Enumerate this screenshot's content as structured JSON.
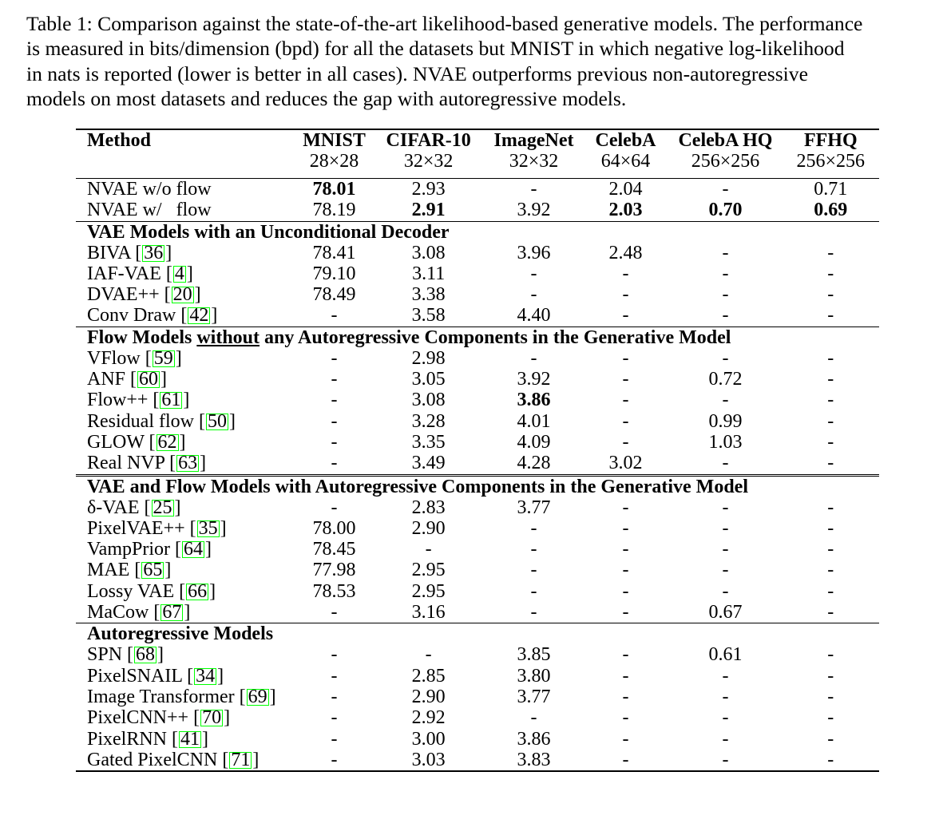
{
  "caption": {
    "lines": [
      "Table 1: Comparison against the state-of-the-art likelihood-based generative models. The performance",
      "is measured in bits/dimension (bpd) for all the datasets but MNIST in which negative log-likelihood",
      "in nats is reported (lower is better in all cases). NVAE outperforms previous non-autoregressive",
      "models on most datasets and reduces the gap with autoregressive models."
    ]
  },
  "header": {
    "method": "Method",
    "datasets": [
      "MNIST",
      "CIFAR-10",
      "ImageNet",
      "CelebA",
      "CelebA HQ",
      "FFHQ"
    ],
    "resolutions": [
      "28×28",
      "32×32",
      "32×32",
      "64×64",
      "256×256",
      "256×256"
    ]
  },
  "nvae": {
    "rows": [
      {
        "name": "NVAE w/o flow",
        "values": [
          "78.01",
          "2.93",
          "-",
          "2.04",
          "-",
          "0.71"
        ]
      },
      {
        "name": "NVAE w/   flow",
        "values": [
          "78.19",
          "2.91",
          "3.92",
          "2.03",
          "0.70",
          "0.69"
        ]
      }
    ]
  },
  "sections": [
    {
      "title": "VAE Models with an Unconditional Decoder",
      "rows": [
        {
          "name": "BIVA",
          "ref": "36",
          "values": [
            "78.41",
            "3.08",
            "3.96",
            "2.48",
            "-",
            "-"
          ]
        },
        {
          "name": "IAF-VAE",
          "ref": "4",
          "values": [
            "79.10",
            "3.11",
            "-",
            "-",
            "-",
            "-"
          ]
        },
        {
          "name": "DVAE++",
          "ref": "20",
          "values": [
            "78.49",
            "3.38",
            "-",
            "-",
            "-",
            "-"
          ]
        },
        {
          "name": "Conv Draw",
          "ref": "42",
          "values": [
            "-",
            "3.58",
            "4.40",
            "-",
            "-",
            "-"
          ]
        }
      ]
    },
    {
      "title_parts": [
        "Flow Models ",
        "without",
        " any Autoregressive Components in the Generative Model"
      ],
      "rows": [
        {
          "name": "VFlow",
          "ref": "59",
          "values": [
            "-",
            "2.98",
            "-",
            "-",
            "-",
            "-"
          ]
        },
        {
          "name": "ANF",
          "ref": "60",
          "values": [
            "-",
            "3.05",
            "3.92",
            "-",
            "0.72",
            "-"
          ]
        },
        {
          "name": "Flow++",
          "ref": "61",
          "values": [
            "-",
            "3.08",
            "3.86",
            "-",
            "-",
            "-"
          ]
        },
        {
          "name": "Residual flow",
          "ref": "50",
          "values": [
            "-",
            "3.28",
            "4.01",
            "-",
            "0.99",
            "-"
          ]
        },
        {
          "name": "GLOW",
          "ref": "62",
          "values": [
            "-",
            "3.35",
            "4.09",
            "-",
            "1.03",
            "-"
          ]
        },
        {
          "name": "Real NVP",
          "ref": "63",
          "values": [
            "-",
            "3.49",
            "4.28",
            "3.02",
            "-",
            "-"
          ]
        }
      ]
    },
    {
      "title": "VAE and Flow Models with Autoregressive Components in the Generative Model",
      "rows": [
        {
          "name": "δ-VAE",
          "ref": "25",
          "values": [
            "-",
            "2.83",
            "3.77",
            "-",
            "-",
            "-"
          ]
        },
        {
          "name": "PixelVAE++",
          "ref": "35",
          "values": [
            "78.00",
            "2.90",
            "-",
            "-",
            "-",
            "-"
          ]
        },
        {
          "name": "VampPrior",
          "ref": "64",
          "values": [
            "78.45",
            "-",
            "-",
            "-",
            "-",
            "-"
          ]
        },
        {
          "name": "MAE",
          "ref": "65",
          "values": [
            "77.98",
            "2.95",
            "-",
            "-",
            "-",
            "-"
          ]
        },
        {
          "name": "Lossy VAE",
          "ref": "66",
          "values": [
            "78.53",
            "2.95",
            "-",
            "-",
            "-",
            "-"
          ]
        },
        {
          "name": "MaCow",
          "ref": "67",
          "values": [
            "-",
            "3.16",
            "-",
            "-",
            "0.67",
            "-"
          ]
        }
      ]
    },
    {
      "title": "Autoregressive Models",
      "rows": [
        {
          "name": "SPN",
          "ref": "68",
          "values": [
            "-",
            "-",
            "3.85",
            "-",
            "0.61",
            "-"
          ]
        },
        {
          "name": "PixelSNAIL",
          "ref": "34",
          "values": [
            "-",
            "2.85",
            "3.80",
            "-",
            "-",
            "-"
          ]
        },
        {
          "name": "Image Transformer",
          "ref": "69",
          "values": [
            "-",
            "2.90",
            "3.77",
            "-",
            "-",
            "-"
          ]
        },
        {
          "name": "PixelCNN++",
          "ref": "70",
          "values": [
            "-",
            "2.92",
            "-",
            "-",
            "-",
            "-"
          ]
        },
        {
          "name": "PixelRNN",
          "ref": "41",
          "values": [
            "-",
            "3.00",
            "3.86",
            "-",
            "-",
            "-"
          ]
        },
        {
          "name": "Gated PixelCNN",
          "ref": "71",
          "values": [
            "-",
            "3.03",
            "3.83",
            "-",
            "-",
            "-"
          ]
        }
      ]
    }
  ],
  "bold_cells": [
    {
      "section": "nvae",
      "row": 0,
      "col": 0
    },
    {
      "section": "nvae",
      "row": 1,
      "col": 1
    },
    {
      "section": "nvae",
      "row": 1,
      "col": 3
    },
    {
      "section": "nvae",
      "row": 1,
      "col": 4
    },
    {
      "section": "nvae",
      "row": 1,
      "col": 5
    },
    {
      "section": 1,
      "row": 2,
      "col": 2
    }
  ],
  "colors": {
    "citation_box": "#00ff00",
    "text": "#000000"
  }
}
